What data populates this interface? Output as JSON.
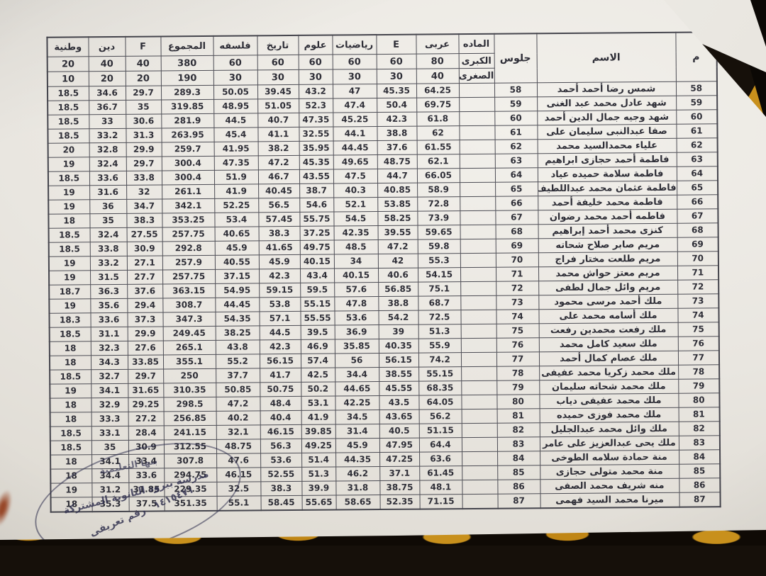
{
  "table": {
    "col_m": "م",
    "col_name": "الاسم",
    "col_seat": "جلوس",
    "col_subject": "الماده",
    "row_major_label": "الكبرى",
    "row_minor_label": "الصغرى",
    "subjects": [
      "عربى",
      "E",
      "رياضيات",
      "علوم",
      "تاريخ",
      "فلسفه",
      "المجموع",
      "F",
      "دين",
      "وطنية"
    ],
    "major_totals": [
      "80",
      "60",
      "60",
      "60",
      "60",
      "60",
      "380",
      "40",
      "40",
      "20"
    ],
    "minor_totals": [
      "40",
      "30",
      "30",
      "30",
      "30",
      "30",
      "190",
      "20",
      "20",
      "10"
    ],
    "rows": [
      {
        "num": "58",
        "seat": "58",
        "name": "شمس رضا أحمد أحمد",
        "scores": [
          "64.25",
          "45.35",
          "47",
          "43.2",
          "39.45",
          "50.05",
          "289.3",
          "29.7",
          "34.6",
          "18.5"
        ]
      },
      {
        "num": "59",
        "seat": "59",
        "name": "شهد عادل محمد عبد الغنى",
        "scores": [
          "69.75",
          "50.4",
          "47.4",
          "52.3",
          "51.05",
          "48.95",
          "319.85",
          "35",
          "36.7",
          "18.5"
        ]
      },
      {
        "num": "60",
        "seat": "60",
        "name": "شهد وجيه جمال الدين أحمد",
        "scores": [
          "61.8",
          "42.3",
          "45.25",
          "47.35",
          "40.7",
          "44.5",
          "281.9",
          "30.6",
          "33",
          "18.5"
        ]
      },
      {
        "num": "61",
        "seat": "61",
        "name": "صفا عبدالنبى سليمان على",
        "scores": [
          "62",
          "38.8",
          "44.1",
          "32.55",
          "41.1",
          "45.4",
          "263.95",
          "31.3",
          "33.2",
          "18.5"
        ]
      },
      {
        "num": "62",
        "seat": "62",
        "name": "علياء محمدالسيد محمد",
        "scores": [
          "61.55",
          "37.6",
          "44.45",
          "35.95",
          "38.2",
          "41.95",
          "259.7",
          "29.9",
          "32.8",
          "20"
        ]
      },
      {
        "num": "63",
        "seat": "63",
        "name": "فاطمة أحمد حجازى ابراهيم",
        "scores": [
          "62.1",
          "48.75",
          "49.65",
          "45.35",
          "47.2",
          "47.35",
          "300.4",
          "29.7",
          "32.4",
          "19"
        ]
      },
      {
        "num": "64",
        "seat": "64",
        "name": "فاطمة سلامة حميده عياد",
        "scores": [
          "66.05",
          "44.7",
          "47.5",
          "43.55",
          "46.7",
          "51.9",
          "300.4",
          "33.8",
          "33.6",
          "18.5"
        ]
      },
      {
        "num": "65",
        "seat": "65",
        "name": "فاطمة عثمان محمد عبداللطيف",
        "scores": [
          "58.9",
          "40.85",
          "40.3",
          "38.7",
          "40.45",
          "41.9",
          "261.1",
          "32",
          "31.6",
          "19"
        ]
      },
      {
        "num": "66",
        "seat": "66",
        "name": "فاطمة محمد خليفة أحمد",
        "scores": [
          "72.8",
          "53.85",
          "52.1",
          "54.6",
          "56.5",
          "52.25",
          "342.1",
          "34.7",
          "36",
          "19"
        ]
      },
      {
        "num": "67",
        "seat": "67",
        "name": "فاطمه أحمد محمد رضوان",
        "scores": [
          "73.9",
          "58.25",
          "54.5",
          "55.75",
          "57.45",
          "53.4",
          "353.25",
          "38.3",
          "35",
          "18"
        ]
      },
      {
        "num": "68",
        "seat": "68",
        "name": "كنزى محمد أحمد إبراهيم",
        "scores": [
          "59.65",
          "39.55",
          "42.35",
          "37.25",
          "38.3",
          "40.65",
          "257.75",
          "27.55",
          "32.4",
          "18.5"
        ]
      },
      {
        "num": "69",
        "seat": "69",
        "name": "مريم صابر صلاح شحاته",
        "scores": [
          "59.8",
          "47.2",
          "48.5",
          "49.75",
          "41.65",
          "45.9",
          "292.8",
          "30.9",
          "33.8",
          "18.5"
        ]
      },
      {
        "num": "70",
        "seat": "70",
        "name": "مريم طلعت مختار فراج",
        "scores": [
          "55.3",
          "42",
          "34",
          "40.15",
          "45.9",
          "40.55",
          "257.9",
          "27.1",
          "33.2",
          "19"
        ]
      },
      {
        "num": "71",
        "seat": "71",
        "name": "مريم معتز حواش محمد",
        "scores": [
          "54.15",
          "40.6",
          "40.15",
          "43.4",
          "42.3",
          "37.15",
          "257.75",
          "27.7",
          "31.5",
          "19"
        ]
      },
      {
        "num": "72",
        "seat": "72",
        "name": "مريم وائل جمال لطفى",
        "scores": [
          "75.1",
          "56.85",
          "57.6",
          "59.5",
          "59.15",
          "54.95",
          "363.15",
          "37.6",
          "36.3",
          "18.7"
        ]
      },
      {
        "num": "73",
        "seat": "73",
        "name": "ملك أحمد مرسى محمود",
        "scores": [
          "68.7",
          "38.8",
          "47.8",
          "55.15",
          "53.8",
          "44.45",
          "308.7",
          "29.4",
          "35.6",
          "19"
        ]
      },
      {
        "num": "74",
        "seat": "74",
        "name": "ملك أسامه محمد على",
        "scores": [
          "72.5",
          "54.2",
          "53.6",
          "55.55",
          "57.1",
          "54.35",
          "347.3",
          "37.3",
          "33.6",
          "18.3"
        ]
      },
      {
        "num": "75",
        "seat": "75",
        "name": "ملك رفعت محمدين رفعت",
        "scores": [
          "51.3",
          "39",
          "36.9",
          "39.5",
          "44.5",
          "38.25",
          "249.45",
          "29.9",
          "31.1",
          "18.5"
        ]
      },
      {
        "num": "76",
        "seat": "76",
        "name": "ملك سعيد كامل محمد",
        "scores": [
          "55.9",
          "40.35",
          "35.85",
          "46.9",
          "42.3",
          "43.8",
          "265.1",
          "27.6",
          "32.3",
          "18"
        ]
      },
      {
        "num": "77",
        "seat": "77",
        "name": "ملك عصام كمال أحمد",
        "scores": [
          "74.2",
          "56.15",
          "56",
          "57.4",
          "56.15",
          "55.2",
          "355.1",
          "33.85",
          "34.3",
          "18"
        ]
      },
      {
        "num": "78",
        "seat": "78",
        "name": "ملك محمد زكريا محمد عفيفى",
        "scores": [
          "55.15",
          "38.55",
          "34.4",
          "42.5",
          "41.7",
          "37.7",
          "250",
          "29.7",
          "32.7",
          "18.5"
        ]
      },
      {
        "num": "79",
        "seat": "79",
        "name": "ملك محمد شحاته سليمان",
        "scores": [
          "68.35",
          "45.55",
          "44.65",
          "50.2",
          "50.75",
          "50.85",
          "310.35",
          "31.65",
          "34.1",
          "19"
        ]
      },
      {
        "num": "80",
        "seat": "80",
        "name": "ملك محمد عفيفى دياب",
        "scores": [
          "64.05",
          "43.5",
          "42.25",
          "53.1",
          "48.4",
          "47.2",
          "298.5",
          "29.25",
          "32.9",
          "18"
        ]
      },
      {
        "num": "81",
        "seat": "81",
        "name": "ملك محمد فوزى حميده",
        "scores": [
          "56.2",
          "43.65",
          "34.5",
          "41.9",
          "40.4",
          "40.2",
          "256.85",
          "27.2",
          "33.3",
          "18"
        ]
      },
      {
        "num": "82",
        "seat": "82",
        "name": "ملك وائل محمد عبدالجليل",
        "scores": [
          "51.15",
          "40.5",
          "31.4",
          "39.85",
          "46.15",
          "32.1",
          "241.15",
          "28.4",
          "33.1",
          "18.5"
        ]
      },
      {
        "num": "83",
        "seat": "83",
        "name": "ملك يحى عبدالعزيز على عامر",
        "scores": [
          "64.4",
          "47.95",
          "45.9",
          "49.25",
          "56.3",
          "48.75",
          "312.55",
          "30.9",
          "35",
          "18.5"
        ]
      },
      {
        "num": "84",
        "seat": "84",
        "name": "منة حمادة سلامه الطوخى",
        "scores": [
          "63.6",
          "47.25",
          "44.35",
          "51.4",
          "53.6",
          "47.6",
          "307.8",
          "33.4",
          "34.1",
          "18"
        ]
      },
      {
        "num": "85",
        "seat": "85",
        "name": "منة محمد متولى حجازى",
        "scores": [
          "61.45",
          "37.1",
          "46.2",
          "51.3",
          "52.55",
          "46.15",
          "294.75",
          "33.6",
          "34.4",
          "18"
        ]
      },
      {
        "num": "86",
        "seat": "86",
        "name": "منه شريف محمد الصفى",
        "scores": [
          "48.1",
          "38.75",
          "31.8",
          "39.9",
          "38.3",
          "32.5",
          "229.35",
          "31.85",
          "31.2",
          "19"
        ]
      },
      {
        "num": "87",
        "seat": "87",
        "name": "ميرنا محمد السيد فهمى",
        "scores": [
          "71.15",
          "52.35",
          "58.65",
          "55.65",
          "58.45",
          "55.1",
          "351.35",
          "37.5",
          "35.3",
          "18"
        ]
      }
    ]
  },
  "stamp": {
    "arc_top": "بنها التعليمية",
    "school_line": "مدرسة ببرود الثانوية المشتركة",
    "id_label": "رقم تعريفى",
    "id_number": "١٤١٥٤٧١"
  },
  "colors": {
    "paper": "#e9e6e0",
    "ink": "#2e2e37",
    "stamp_ink": "#30304e",
    "background_dark": "#16100a",
    "leopard_amber": "#c08615"
  }
}
